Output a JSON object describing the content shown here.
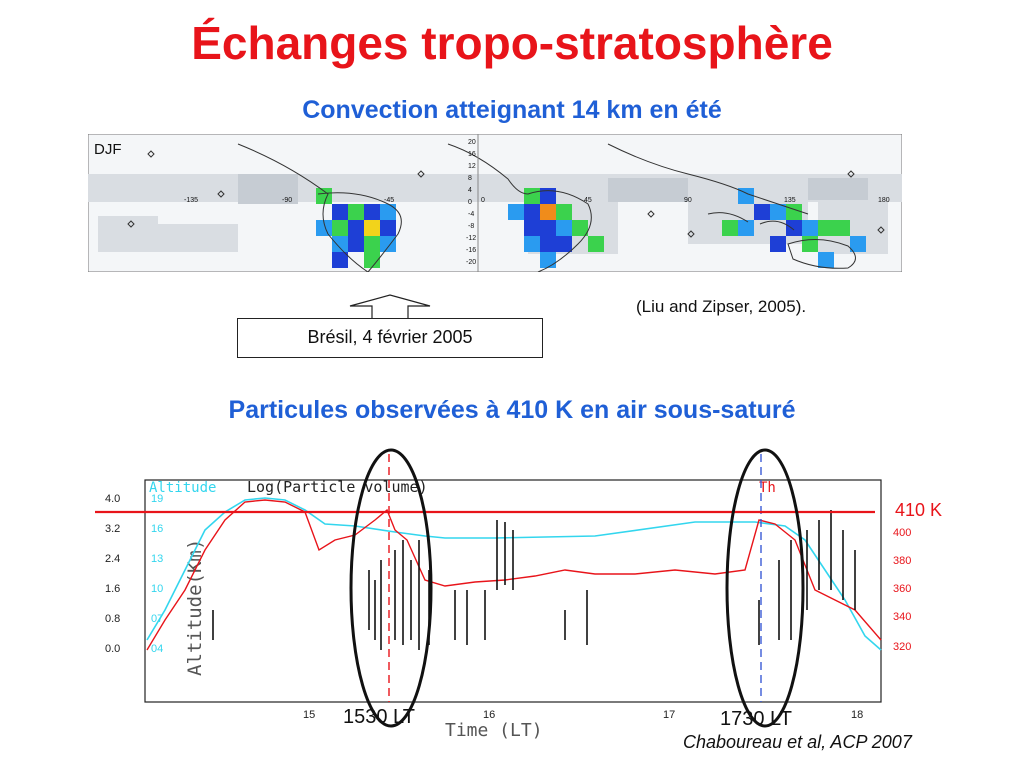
{
  "title": "Échanges tropo-stratosphère",
  "subtitle_top": "Convection atteignant 14 km en été",
  "map": {
    "season_label": "DJF",
    "lon_labels": [
      "-135",
      "-90",
      "-45",
      "0",
      "45",
      "90",
      "135",
      "180"
    ],
    "lat_labels": [
      "20",
      "16",
      "12",
      "8",
      "4",
      "0",
      "-4",
      "-8",
      "-12",
      "-16",
      "-20"
    ]
  },
  "citation_top": "(Liu and Zipser, 2005).",
  "callout_label": "Brésil, 4 février 2005",
  "subtitle_bottom": "Particules observées à 410 K en air sous-saturé",
  "plot": {
    "legend_altitude": "Altitude",
    "legend_particle": "Log(Particle volume)",
    "legend_th": "Th",
    "yaxis_label": "Altitude(Km)",
    "xaxis_label": "Time (LT)",
    "left_ticks": [
      "4.0",
      "3.2",
      "2.4",
      "1.6",
      "0.8",
      "0.0"
    ],
    "altitude_ticks": [
      "19",
      "16",
      "13",
      "10",
      "07",
      "04"
    ],
    "th_ticks": [
      "400",
      "380",
      "360",
      "340",
      "320"
    ],
    "x_ticks": [
      "15",
      "16",
      "17",
      "18"
    ]
  },
  "label_410k": "410 K",
  "label_1530": "1530 LT",
  "label_1730": "1730 LT",
  "citation_bottom": "Chaboureau et al, ACP 2007",
  "colors": {
    "title": "#e8141a",
    "subtitle": "#1f5fd6",
    "altitude": "#33d6ee",
    "theta": "#e8141a",
    "particles": "#111111"
  }
}
